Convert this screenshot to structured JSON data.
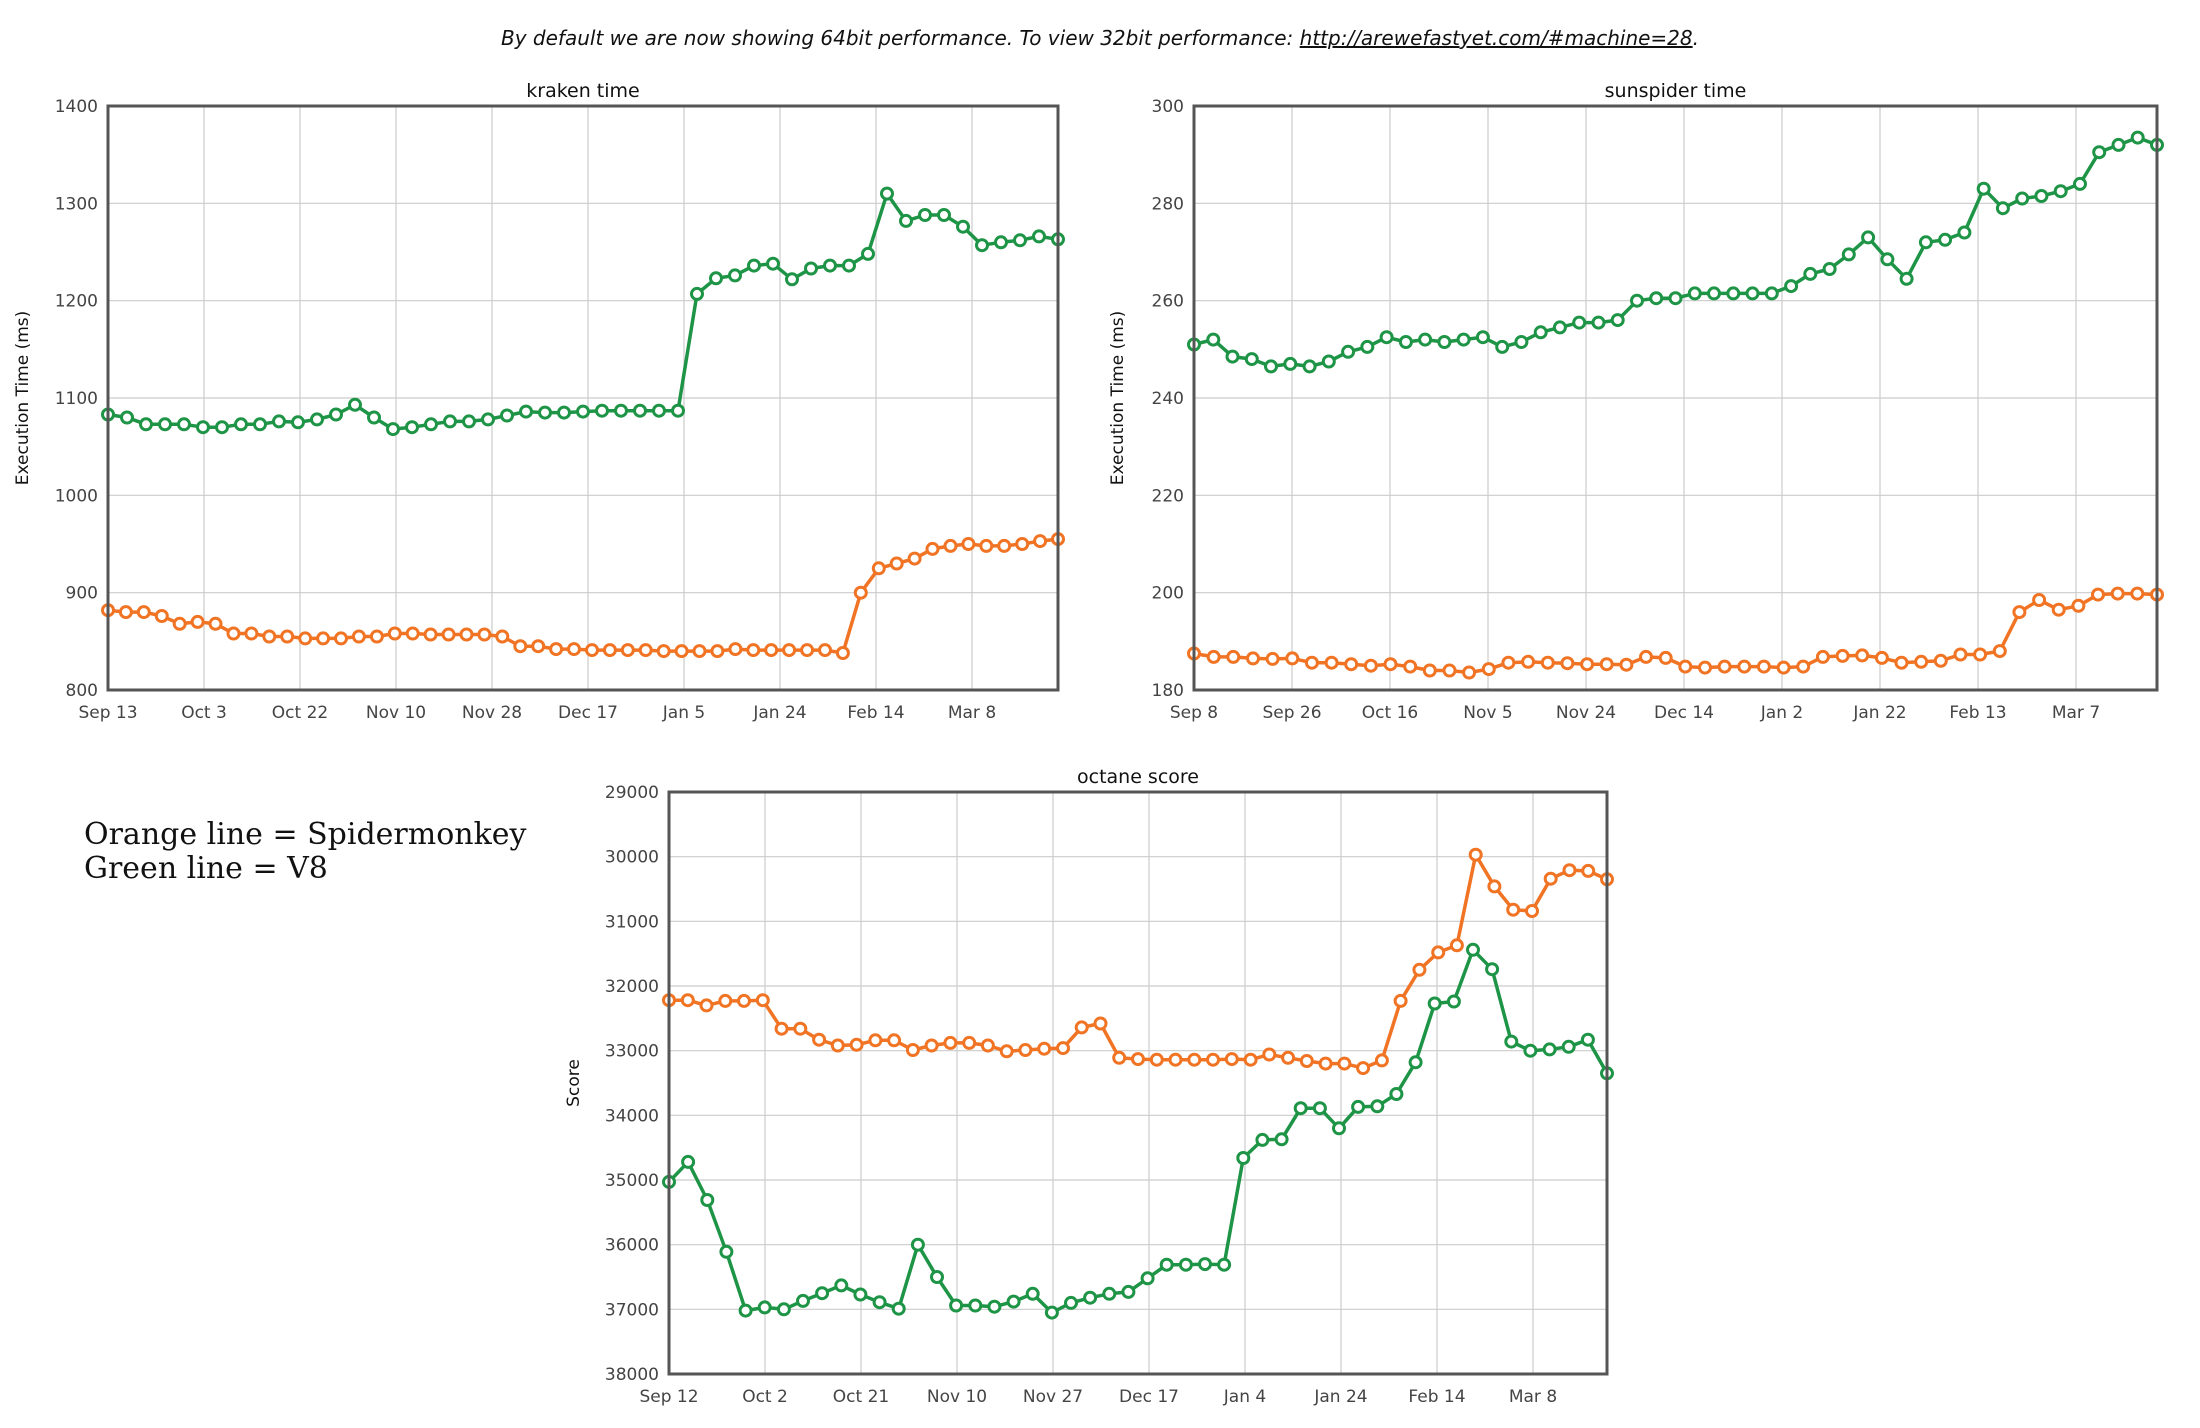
{
  "header": {
    "note_prefix": "By default we are now showing 64bit performance. To view 32bit performance: ",
    "note_link": "http://arewefastyet.com/#machine=28",
    "note_suffix": "."
  },
  "legend_note": {
    "line1": "Orange line = Spidermonkey",
    "line2": "Green line = V8"
  },
  "colors": {
    "spidermonkey": "#f07424",
    "v8": "#1e9446",
    "frame": "#555555",
    "grid": "#cccccc"
  },
  "chart_data": [
    {
      "type": "line",
      "title": "kraken time",
      "ylabel": "Execution Time (ms)",
      "xlabel": "",
      "ylim": [
        800,
        1400
      ],
      "yticks": [
        800,
        900,
        1000,
        1100,
        1200,
        1300,
        1400
      ],
      "inverted": false,
      "grid": true,
      "xtick_labels": [
        "Sep 13",
        "Oct 3",
        "Oct 22",
        "Nov 10",
        "Nov 28",
        "Dec 17",
        "Jan 5",
        "Jan 24",
        "Feb 14",
        "Mar 8"
      ],
      "series": [
        {
          "color": "#f07424",
          "values": [
            882,
            880,
            880,
            876,
            868,
            870,
            868,
            858,
            858,
            855,
            855,
            853,
            853,
            853,
            855,
            855,
            858,
            858,
            857,
            857,
            857,
            857,
            855,
            845,
            845,
            842,
            842,
            841,
            841,
            841,
            841,
            840,
            840,
            840,
            840,
            842,
            841,
            841,
            841,
            841,
            841,
            838,
            900,
            925,
            930,
            935,
            945,
            948,
            950,
            948,
            948,
            950,
            953,
            955
          ]
        },
        {
          "color": "#1e9446",
          "values": [
            1083,
            1080,
            1073,
            1073,
            1073,
            1070,
            1070,
            1073,
            1073,
            1076,
            1075,
            1078,
            1083,
            1093,
            1080,
            1068,
            1070,
            1073,
            1076,
            1076,
            1078,
            1082,
            1086,
            1085,
            1085,
            1086,
            1087,
            1087,
            1087,
            1087,
            1087,
            1207,
            1223,
            1226,
            1236,
            1238,
            1222,
            1233,
            1236,
            1236,
            1248,
            1310,
            1282,
            1288,
            1288,
            1276,
            1257,
            1260,
            1262,
            1266,
            1263
          ]
        }
      ]
    },
    {
      "type": "line",
      "title": "sunspider time",
      "ylabel": "Execution Time (ms)",
      "xlabel": "",
      "ylim": [
        180,
        300
      ],
      "yticks": [
        180,
        200,
        220,
        240,
        260,
        280,
        300
      ],
      "inverted": false,
      "grid": true,
      "xtick_labels": [
        "Sep 8",
        "Sep 26",
        "Oct 16",
        "Nov 5",
        "Nov 24",
        "Dec 14",
        "Jan 2",
        "Jan 22",
        "Feb 13",
        "Mar 7"
      ],
      "series": [
        {
          "color": "#f07424",
          "values": [
            187.5,
            186.8,
            186.8,
            186.5,
            186.4,
            186.5,
            185.6,
            185.6,
            185.3,
            185.0,
            185.3,
            184.8,
            184.0,
            184.0,
            183.6,
            184.3,
            185.6,
            185.8,
            185.6,
            185.5,
            185.3,
            185.3,
            185.2,
            186.8,
            186.6,
            184.8,
            184.6,
            184.8,
            184.8,
            184.8,
            184.6,
            184.8,
            186.8,
            187.0,
            187.1,
            186.6,
            185.6,
            185.8,
            186.0,
            187.3,
            187.3,
            188.0,
            196.0,
            198.5,
            196.5,
            197.3,
            199.6,
            199.8,
            199.8,
            199.6
          ]
        },
        {
          "color": "#1e9446",
          "values": [
            251,
            252,
            248.5,
            248,
            246.5,
            247,
            246.5,
            247.5,
            249.5,
            250.5,
            252.5,
            251.5,
            252,
            251.5,
            252,
            252.5,
            250.5,
            251.5,
            253.5,
            254.5,
            255.5,
            255.5,
            256,
            260,
            260.5,
            260.5,
            261.5,
            261.5,
            261.5,
            261.5,
            261.5,
            263,
            265.5,
            266.5,
            269.5,
            273,
            268.5,
            264.5,
            272,
            272.5,
            274,
            283,
            279,
            281,
            281.5,
            282.5,
            284,
            290.5,
            292,
            293.5,
            292
          ]
        }
      ]
    },
    {
      "type": "line",
      "title": "octane score",
      "ylabel": "Score",
      "xlabel": "",
      "ylim": [
        29000,
        38000
      ],
      "yticks": [
        29000,
        30000,
        31000,
        32000,
        33000,
        34000,
        35000,
        36000,
        37000,
        38000
      ],
      "inverted": true,
      "grid": true,
      "xtick_labels": [
        "Sep 12",
        "Oct 2",
        "Oct 21",
        "Nov 10",
        "Nov 27",
        "Dec 17",
        "Jan 4",
        "Jan 24",
        "Feb 14",
        "Mar 8"
      ],
      "series": [
        {
          "color": "#f07424",
          "values": [
            32220,
            32220,
            32300,
            32230,
            32230,
            32220,
            32660,
            32660,
            32830,
            32920,
            32910,
            32840,
            32840,
            32990,
            32920,
            32880,
            32880,
            32920,
            33010,
            32990,
            32970,
            32960,
            32640,
            32580,
            33110,
            33130,
            33140,
            33140,
            33140,
            33140,
            33130,
            33140,
            33060,
            33110,
            33160,
            33200,
            33200,
            33270,
            33150,
            32230,
            31750,
            31480,
            31370,
            29970,
            30460,
            30820,
            30840,
            30340,
            30210,
            30220,
            30350
          ]
        },
        {
          "color": "#1e9446",
          "values": [
            35030,
            34720,
            35310,
            36110,
            37020,
            36970,
            37000,
            36870,
            36750,
            36630,
            36770,
            36890,
            36990,
            36000,
            36500,
            36940,
            36940,
            36960,
            36880,
            36760,
            37050,
            36900,
            36820,
            36760,
            36730,
            36520,
            36310,
            36310,
            36300,
            36310,
            34660,
            34380,
            34370,
            33890,
            33890,
            34200,
            33870,
            33860,
            33670,
            33180,
            32270,
            32240,
            31440,
            31740,
            32860,
            33000,
            32980,
            32940,
            32830,
            33350
          ]
        }
      ]
    }
  ]
}
